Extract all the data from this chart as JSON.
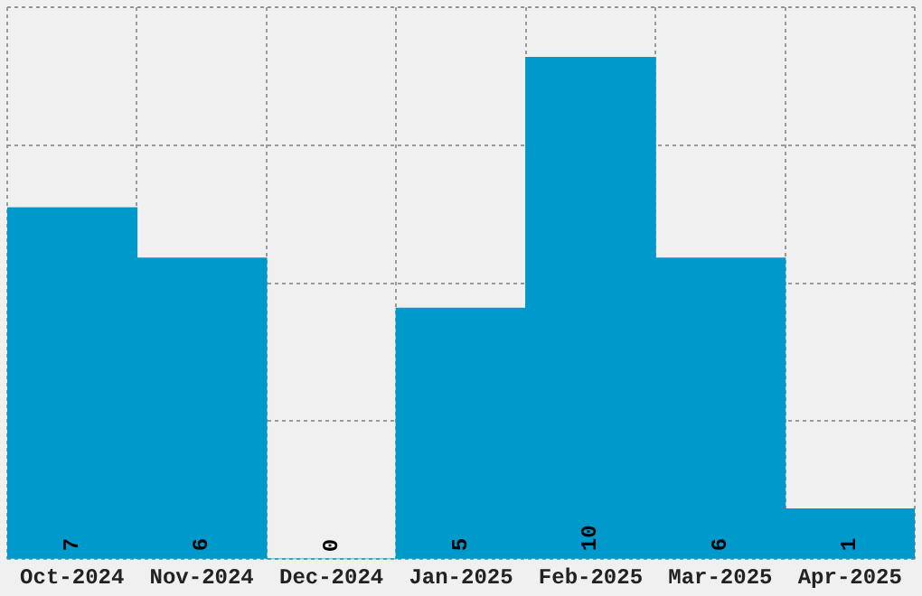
{
  "chart_data": {
    "type": "bar",
    "categories": [
      "Oct-2024",
      "Nov-2024",
      "Dec-2024",
      "Jan-2025",
      "Feb-2025",
      "Mar-2025",
      "Apr-2025"
    ],
    "values": [
      7,
      6,
      0,
      5,
      10,
      6,
      1
    ],
    "color": "#0099cc",
    "ylim": [
      0,
      11
    ],
    "yticks": [
      {
        "value": 0,
        "label": null
      },
      {
        "value": 2.75,
        "label": null
      },
      {
        "value": 5.5,
        "label": null
      },
      {
        "value": 8.25,
        "label": null
      },
      {
        "value": 11,
        "label": null
      }
    ],
    "tick_labels": "x",
    "grid": true,
    "data_labels": true,
    "legend": false
  }
}
